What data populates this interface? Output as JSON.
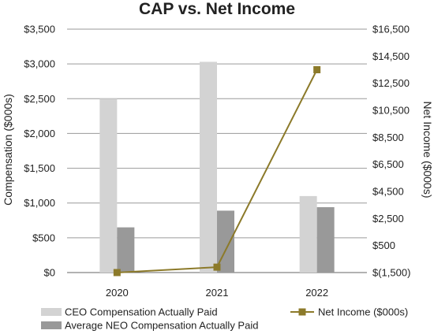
{
  "chart_data": {
    "type": "bar",
    "title": "CAP vs. Net Income",
    "categories": [
      "2020",
      "2021",
      "2022"
    ],
    "ylabel_left": "Compensation ($000s)",
    "ylabel_right": "Net Income ($000s)",
    "y_left": {
      "lim": [
        0,
        3500
      ],
      "ticks": [
        0,
        500,
        1000,
        1500,
        2000,
        2500,
        3000,
        3500
      ],
      "tick_labels": [
        "$0",
        "$500",
        "$1,000",
        "$1,500",
        "$2,000",
        "$2,500",
        "$3,000",
        "$3,500"
      ]
    },
    "y_right": {
      "lim": [
        -1500,
        16500
      ],
      "ticks": [
        -1500,
        500,
        2500,
        4500,
        6500,
        8500,
        10500,
        12500,
        14500,
        16500
      ],
      "tick_labels": [
        "$(1,500)",
        "$500",
        "$2,500",
        "$4,500",
        "$6,500",
        "$8,500",
        "$10,500",
        "$12,500",
        "$14,500",
        "$16,500"
      ]
    },
    "grid": true,
    "legend_position": "bottom",
    "series": [
      {
        "name": "CEO Compensation Actually Paid",
        "type": "bar",
        "axis": "left",
        "color": "#d3d3d3",
        "values": [
          2500,
          3030,
          1100
        ]
      },
      {
        "name": "Average NEO Compensation Actually Paid",
        "type": "bar",
        "axis": "left",
        "color": "#999999",
        "values": [
          650,
          890,
          940
        ]
      },
      {
        "name": "Net Income ($000s)",
        "type": "line",
        "axis": "right",
        "color": "#8c7a2a",
        "marker": "square",
        "values": [
          -1500,
          -1100,
          13500
        ]
      }
    ]
  }
}
